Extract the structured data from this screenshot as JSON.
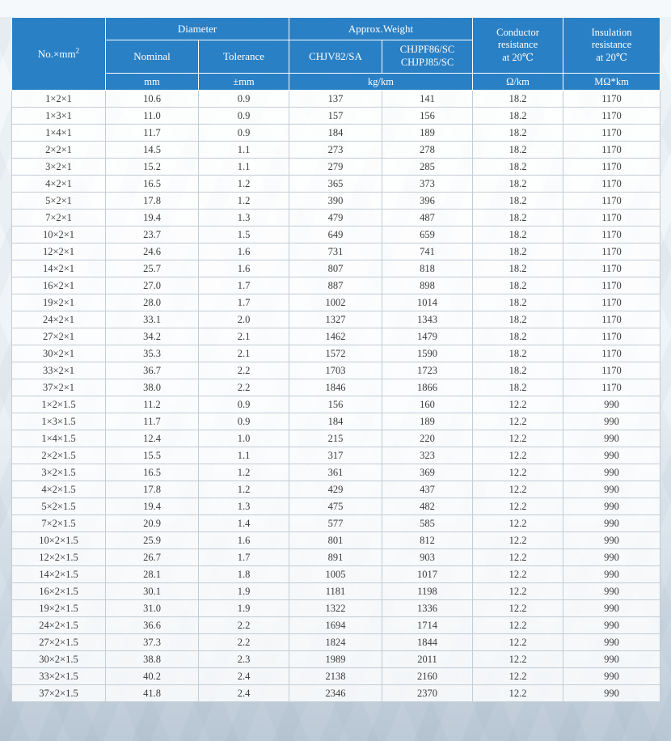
{
  "colors": {
    "header_bg": "#2a80c5",
    "body_text": "#3c3c3c",
    "grid_line": "#c3cdd5"
  },
  "table": {
    "col_keys": [
      "no",
      "nominal",
      "tolerance",
      "chjv82_sa",
      "chjpf86_chjpj85",
      "conductor_resistance",
      "insulation_resistance"
    ],
    "header": {
      "no_label": "No.×mm",
      "no_sup": "2",
      "diameter": "Diameter",
      "nominal": "Nominal",
      "tolerance": "Tolerance",
      "approx_weight": "Approx.Weight",
      "chjv": "CHJV82/SA",
      "chjpf": [
        "CHJPF86/SC",
        "CHJPJ85/SC"
      ],
      "conductor": [
        "Conductor",
        "resistance",
        "at 20℃"
      ],
      "insulation": [
        "Insulation",
        "resistance",
        "at 20℃"
      ],
      "units": {
        "mm": "mm",
        "tolerance_mm": "±mm",
        "weight": "kg/km",
        "conductor": "Ω/km",
        "insulation": "MΩ*km"
      }
    },
    "rows": [
      [
        "1×2×1",
        "10.6",
        "0.9",
        "137",
        "141",
        "18.2",
        "1170"
      ],
      [
        "1×3×1",
        "11.0",
        "0.9",
        "157",
        "156",
        "18.2",
        "1170"
      ],
      [
        "1×4×1",
        "11.7",
        "0.9",
        "184",
        "189",
        "18.2",
        "1170"
      ],
      [
        "2×2×1",
        "14.5",
        "1.1",
        "273",
        "278",
        "18.2",
        "1170"
      ],
      [
        "3×2×1",
        "15.2",
        "1.1",
        "279",
        "285",
        "18.2",
        "1170"
      ],
      [
        "4×2×1",
        "16.5",
        "1.2",
        "365",
        "373",
        "18.2",
        "1170"
      ],
      [
        "5×2×1",
        "17.8",
        "1.2",
        "390",
        "396",
        "18.2",
        "1170"
      ],
      [
        "7×2×1",
        "19.4",
        "1.3",
        "479",
        "487",
        "18.2",
        "1170"
      ],
      [
        "10×2×1",
        "23.7",
        "1.5",
        "649",
        "659",
        "18.2",
        "1170"
      ],
      [
        "12×2×1",
        "24.6",
        "1.6",
        "731",
        "741",
        "18.2",
        "1170"
      ],
      [
        "14×2×1",
        "25.7",
        "1.6",
        "807",
        "818",
        "18.2",
        "1170"
      ],
      [
        "16×2×1",
        "27.0",
        "1.7",
        "887",
        "898",
        "18.2",
        "1170"
      ],
      [
        "19×2×1",
        "28.0",
        "1.7",
        "1002",
        "1014",
        "18.2",
        "1170"
      ],
      [
        "24×2×1",
        "33.1",
        "2.0",
        "1327",
        "1343",
        "18.2",
        "1170"
      ],
      [
        "27×2×1",
        "34.2",
        "2.1",
        "1462",
        "1479",
        "18.2",
        "1170"
      ],
      [
        "30×2×1",
        "35.3",
        "2.1",
        "1572",
        "1590",
        "18.2",
        "1170"
      ],
      [
        "33×2×1",
        "36.7",
        "2.2",
        "1703",
        "1723",
        "18.2",
        "1170"
      ],
      [
        "37×2×1",
        "38.0",
        "2.2",
        "1846",
        "1866",
        "18.2",
        "1170"
      ],
      [
        "1×2×1.5",
        "11.2",
        "0.9",
        "156",
        "160",
        "12.2",
        "990"
      ],
      [
        "1×3×1.5",
        "11.7",
        "0.9",
        "184",
        "189",
        "12.2",
        "990"
      ],
      [
        "1×4×1.5",
        "12.4",
        "1.0",
        "215",
        "220",
        "12.2",
        "990"
      ],
      [
        "2×2×1.5",
        "15.5",
        "1.1",
        "317",
        "323",
        "12.2",
        "990"
      ],
      [
        "3×2×1.5",
        "16.5",
        "1.2",
        "361",
        "369",
        "12.2",
        "990"
      ],
      [
        "4×2×1.5",
        "17.8",
        "1.2",
        "429",
        "437",
        "12.2",
        "990"
      ],
      [
        "5×2×1.5",
        "19.4",
        "1.3",
        "475",
        "482",
        "12.2",
        "990"
      ],
      [
        "7×2×1.5",
        "20.9",
        "1.4",
        "577",
        "585",
        "12.2",
        "990"
      ],
      [
        "10×2×1.5",
        "25.9",
        "1.6",
        "801",
        "812",
        "12.2",
        "990"
      ],
      [
        "12×2×1.5",
        "26.7",
        "1.7",
        "891",
        "903",
        "12.2",
        "990"
      ],
      [
        "14×2×1.5",
        "28.1",
        "1.8",
        "1005",
        "1017",
        "12.2",
        "990"
      ],
      [
        "16×2×1.5",
        "30.1",
        "1.9",
        "1181",
        "1198",
        "12.2",
        "990"
      ],
      [
        "19×2×1.5",
        "31.0",
        "1.9",
        "1322",
        "1336",
        "12.2",
        "990"
      ],
      [
        "24×2×1.5",
        "36.6",
        "2.2",
        "1694",
        "1714",
        "12.2",
        "990"
      ],
      [
        "27×2×1.5",
        "37.3",
        "2.2",
        "1824",
        "1844",
        "12.2",
        "990"
      ],
      [
        "30×2×1.5",
        "38.8",
        "2.3",
        "1989",
        "2011",
        "12.2",
        "990"
      ],
      [
        "33×2×1.5",
        "40.2",
        "2.4",
        "2138",
        "2160",
        "12.2",
        "990"
      ],
      [
        "37×2×1.5",
        "41.8",
        "2.4",
        "2346",
        "2370",
        "12.2",
        "990"
      ]
    ]
  }
}
